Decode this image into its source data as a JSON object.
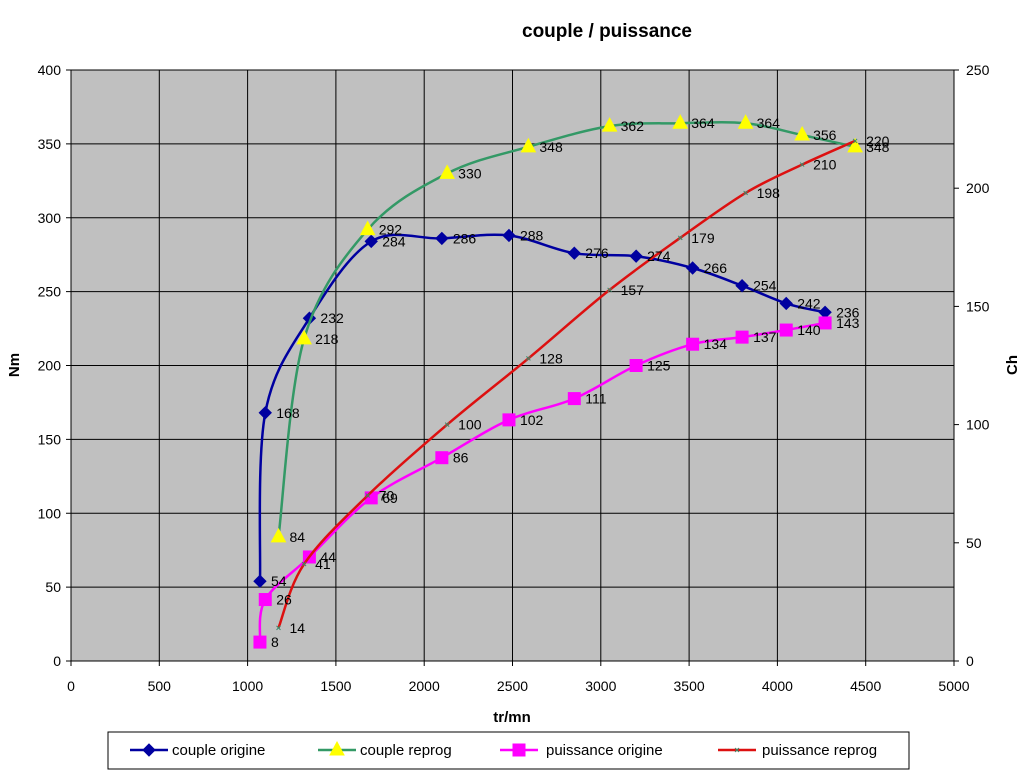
{
  "chart_data": {
    "type": "line",
    "title": "couple / puissance",
    "xlabel": "tr/mn",
    "ylabel_left": "Nm",
    "ylabel_right": "Ch",
    "xlim": [
      0,
      5000
    ],
    "ylim_left": [
      0,
      400
    ],
    "ylim_right": [
      0,
      250
    ],
    "x_ticks": [
      0,
      500,
      1000,
      1500,
      2000,
      2500,
      3000,
      3500,
      4000,
      4500,
      5000
    ],
    "y_left_ticks": [
      0,
      50,
      100,
      150,
      200,
      250,
      300,
      350,
      400
    ],
    "y_right_ticks": [
      0,
      50,
      100,
      150,
      200,
      250
    ],
    "grid": true,
    "legend_position": "bottom",
    "colors": {
      "couple_origine": "#0000a0",
      "couple_reprog": "#339966",
      "puissance_origine": "#ff00ff",
      "puissance_reprog": "#dd1010",
      "plot_background": "#c0c0c0",
      "marker_yellow": "#ffff00"
    },
    "series": [
      {
        "name": "couple origine",
        "axis": "left",
        "marker": "diamond",
        "x": [
          1070,
          1100,
          1350,
          1700,
          2100,
          2480,
          2850,
          3200,
          3520,
          3800,
          4050,
          4270
        ],
        "y": [
          54,
          168,
          232,
          284,
          286,
          288,
          276,
          274,
          266,
          254,
          242,
          236
        ],
        "labels": [
          "54",
          "168",
          "232",
          "284",
          "286",
          "288",
          "276",
          "274",
          "266",
          "254",
          "242",
          "236"
        ]
      },
      {
        "name": "couple reprog",
        "axis": "left",
        "marker": "triangle",
        "x": [
          1175,
          1320,
          1680,
          2130,
          2590,
          3050,
          3450,
          3820,
          4140,
          4440
        ],
        "y": [
          84,
          218,
          292,
          330,
          348,
          362,
          364,
          364,
          356,
          348
        ],
        "labels": [
          "84",
          "218",
          "292",
          "330",
          "348",
          "362",
          "364",
          "364",
          "356",
          "348"
        ]
      },
      {
        "name": "puissance origine",
        "axis": "right",
        "marker": "square",
        "x": [
          1070,
          1100,
          1350,
          1700,
          2100,
          2480,
          2850,
          3200,
          3520,
          3800,
          4050,
          4270
        ],
        "y": [
          8,
          26,
          44,
          69,
          86,
          102,
          111,
          125,
          134,
          137,
          140,
          143
        ],
        "labels": [
          "8",
          "26",
          "44",
          "69",
          "86",
          "102",
          "111",
          "125",
          "134",
          "137",
          "140",
          "143"
        ]
      },
      {
        "name": "puissance reprog",
        "axis": "right",
        "marker": "x",
        "x": [
          1175,
          1320,
          1680,
          2130,
          2590,
          3050,
          3450,
          3820,
          4140,
          4440
        ],
        "y": [
          14,
          41,
          70,
          100,
          128,
          157,
          179,
          198,
          210,
          220
        ],
        "labels": [
          "14",
          "41",
          "70",
          "100",
          "128",
          "157",
          "179",
          "198",
          "210",
          "220"
        ]
      }
    ]
  }
}
